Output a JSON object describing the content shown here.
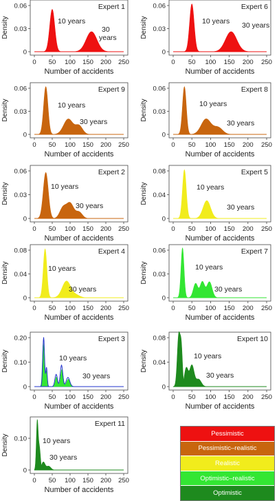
{
  "chart_data": [
    {
      "type": "area",
      "title": "Expert 1",
      "xlabel": "Number of accidents",
      "ylabel": "Density",
      "xlim": [
        0,
        250
      ],
      "ylim": [
        0,
        0.06
      ],
      "yticks": [
        "0",
        "0.03",
        "0.06"
      ],
      "xticks": [
        "0",
        "50",
        "100",
        "150",
        "200",
        "250"
      ],
      "color": "#ee1111",
      "annotations": [
        "10 years",
        "30 years"
      ],
      "series": [
        {
          "name": "10 years",
          "peaks": [
            [
              50,
              0.055,
              7
            ]
          ]
        },
        {
          "name": "30 years",
          "peaks": [
            [
              160,
              0.026,
              15
            ]
          ]
        }
      ]
    },
    {
      "type": "area",
      "title": "Expert 6",
      "xlabel": "Number of accidents",
      "ylabel": "Density",
      "xlim": [
        0,
        250
      ],
      "ylim": [
        0,
        0.06
      ],
      "yticks": [
        "0",
        "0.03",
        "0.06"
      ],
      "xticks": [
        "0",
        "50",
        "100",
        "150",
        "200",
        "250"
      ],
      "color": "#ee1111",
      "annotations": [
        "10 years",
        "30 years"
      ],
      "series": [
        {
          "name": "10 years",
          "peaks": [
            [
              50,
              0.062,
              6
            ]
          ]
        },
        {
          "name": "30 years",
          "peaks": [
            [
              155,
              0.026,
              15
            ]
          ]
        }
      ]
    },
    {
      "type": "area",
      "title": "Expert 9",
      "xlabel": "Number of accidents",
      "ylabel": "Density",
      "xlim": [
        0,
        250
      ],
      "ylim": [
        0,
        0.06
      ],
      "yticks": [
        "0",
        "0.03",
        "0.06"
      ],
      "xticks": [
        "0",
        "50",
        "100",
        "150",
        "200",
        "250"
      ],
      "color": "#c8650e",
      "annotations": [
        "10 years",
        "30 years"
      ],
      "series": [
        {
          "name": "10 years",
          "peaks": [
            [
              32,
              0.062,
              6
            ]
          ]
        },
        {
          "name": "30 years",
          "peaks": [
            [
              95,
              0.02,
              13
            ],
            [
              125,
              0.011,
              10
            ]
          ]
        }
      ]
    },
    {
      "type": "area",
      "title": "Expert 8",
      "xlabel": "Number of accidents",
      "ylabel": "Density",
      "xlim": [
        0,
        250
      ],
      "ylim": [
        0,
        0.06
      ],
      "yticks": [
        "0",
        "0.03",
        "0.06"
      ],
      "xticks": [
        "0",
        "50",
        "100",
        "150",
        "200",
        "250"
      ],
      "color": "#c8650e",
      "annotations": [
        "10 years",
        "30 years"
      ],
      "series": [
        {
          "name": "10 years",
          "peaks": [
            [
              30,
              0.062,
              5
            ]
          ]
        },
        {
          "name": "30 years",
          "peaks": [
            [
              88,
              0.02,
              13
            ],
            [
              120,
              0.009,
              12
            ]
          ]
        }
      ]
    },
    {
      "type": "area",
      "title": "Expert 2",
      "xlabel": "Number of accidents",
      "ylabel": "Density",
      "xlim": [
        0,
        250
      ],
      "ylim": [
        0,
        0.06
      ],
      "yticks": [
        "0",
        "0.03",
        "0.06"
      ],
      "xticks": [
        "0",
        "50",
        "100",
        "150",
        "200",
        "250"
      ],
      "color": "#c8650e",
      "annotations": [
        "10 years",
        "30 years"
      ],
      "series": [
        {
          "name": "10 years",
          "peaks": [
            [
              32,
              0.058,
              7
            ]
          ]
        },
        {
          "name": "30 years",
          "peaks": [
            [
              80,
              0.013,
              9
            ],
            [
              100,
              0.019,
              10
            ],
            [
              125,
              0.008,
              9
            ]
          ]
        }
      ]
    },
    {
      "type": "area",
      "title": "Expert 5",
      "xlabel": "Number of accidents",
      "ylabel": "Density",
      "xlim": [
        0,
        250
      ],
      "ylim": [
        0,
        0.08
      ],
      "yticks": [
        "0",
        "0.04",
        "0.08"
      ],
      "xticks": [
        "0",
        "50",
        "100",
        "150",
        "200",
        "250"
      ],
      "color": "#f1ec1c",
      "annotations": [
        "10 years",
        "30 years"
      ],
      "series": [
        {
          "name": "10 years",
          "peaks": [
            [
              30,
              0.082,
              5
            ]
          ]
        },
        {
          "name": "30 years",
          "peaks": [
            [
              90,
              0.03,
              10
            ]
          ]
        }
      ]
    },
    {
      "type": "area",
      "title": "Expert 4",
      "xlabel": "Number of accidents",
      "ylabel": "Density",
      "xlim": [
        0,
        250
      ],
      "ylim": [
        0,
        0.08
      ],
      "yticks": [
        "0",
        "0.04",
        "0.08"
      ],
      "xticks": [
        "0",
        "50",
        "100",
        "150",
        "200",
        "250"
      ],
      "color": "#f1ec1c",
      "annotations": [
        "10 years",
        "30 years"
      ],
      "series": [
        {
          "name": "10 years",
          "peaks": [
            [
              30,
              0.082,
              5
            ]
          ]
        },
        {
          "name": "30 years",
          "peaks": [
            [
              90,
              0.028,
              12
            ],
            [
              118,
              0.004,
              10
            ]
          ]
        }
      ]
    },
    {
      "type": "area",
      "title": "Expert 7",
      "xlabel": "Number of accidents",
      "ylabel": "Density",
      "xlim": [
        0,
        250
      ],
      "ylim": [
        0,
        0.06
      ],
      "yticks": [
        "0",
        "0.03",
        "0.06"
      ],
      "xticks": [
        "0",
        "50",
        "100",
        "150",
        "200",
        "250"
      ],
      "color": "#33e633",
      "annotations": [
        "10 years",
        "30 years"
      ],
      "series": [
        {
          "name": "10 years",
          "peaks": [
            [
              25,
              0.063,
              4
            ]
          ]
        },
        {
          "name": "30 years",
          "peaks": [
            [
              60,
              0.018,
              6
            ],
            [
              78,
              0.02,
              6
            ],
            [
              97,
              0.02,
              7
            ]
          ]
        }
      ]
    },
    {
      "type": "area",
      "title": "Expert 3",
      "xlabel": "Number of accidents",
      "ylabel": "Density",
      "xlim": [
        0,
        250
      ],
      "ylim": [
        0,
        0.2
      ],
      "yticks": [
        "0",
        "0.10",
        "0.20"
      ],
      "xticks": [
        "0",
        "50",
        "100",
        "150",
        "200",
        "250"
      ],
      "color": "#33e633",
      "outline_color": "#2233cc",
      "annotations": [
        "10 years",
        "30 years"
      ],
      "series": [
        {
          "name": "10 years",
          "peaks": [
            [
              25,
              0.18,
              2.5
            ],
            [
              33,
              0.07,
              2
            ]
          ]
        },
        {
          "name": "30 years",
          "peaks": [
            [
              62,
              0.04,
              3.5
            ],
            [
              77,
              0.07,
              3.5
            ],
            [
              95,
              0.03,
              5
            ]
          ]
        }
      ]
    },
    {
      "type": "area",
      "title": "Expert 10",
      "xlabel": "Number of accidents",
      "ylabel": "Density",
      "xlim": [
        0,
        250
      ],
      "ylim": [
        0,
        0.08
      ],
      "yticks": [
        "0",
        "0.04",
        "0.08"
      ],
      "xticks": [
        "0",
        "50",
        "100",
        "150",
        "200",
        "250"
      ],
      "color": "#1e8a1e",
      "annotations": [
        "10 years",
        "30 years"
      ],
      "series": [
        {
          "name": "10 years",
          "peaks": [
            [
              15,
              0.085,
              4
            ],
            [
              22,
              0.055,
              3
            ]
          ]
        },
        {
          "name": "30 years",
          "peaks": [
            [
              35,
              0.03,
              5
            ],
            [
              50,
              0.035,
              6
            ],
            [
              68,
              0.012,
              7
            ]
          ]
        }
      ]
    },
    {
      "type": "area",
      "title": "Expert 11",
      "xlabel": "Number of accidents",
      "ylabel": "Density",
      "xlim": [
        0,
        250
      ],
      "ylim": [
        0,
        0.15
      ],
      "yticks": [
        "0",
        "0.10"
      ],
      "xticks": [
        "0",
        "50",
        "100",
        "150",
        "200",
        "250"
      ],
      "color": "#1e8a1e",
      "annotations": [
        "10 years",
        "30 years"
      ],
      "series": [
        {
          "name": "10 years",
          "peaks": [
            [
              8,
              0.15,
              2.5
            ],
            [
              14,
              0.07,
              3
            ]
          ]
        },
        {
          "name": "30 years",
          "peaks": [
            [
              25,
              0.025,
              5
            ],
            [
              40,
              0.012,
              6
            ]
          ]
        }
      ]
    }
  ],
  "legend": {
    "items": [
      {
        "label": "Pessimistic",
        "color": "#ee1111"
      },
      {
        "label": "Pessimistic–realistic",
        "color": "#c8650e"
      },
      {
        "label": "Realistic",
        "color": "#f1ec1c"
      },
      {
        "label": "Optimistic–realistic",
        "color": "#33e633"
      },
      {
        "label": "Optimistic",
        "color": "#1e8a1e"
      }
    ]
  }
}
